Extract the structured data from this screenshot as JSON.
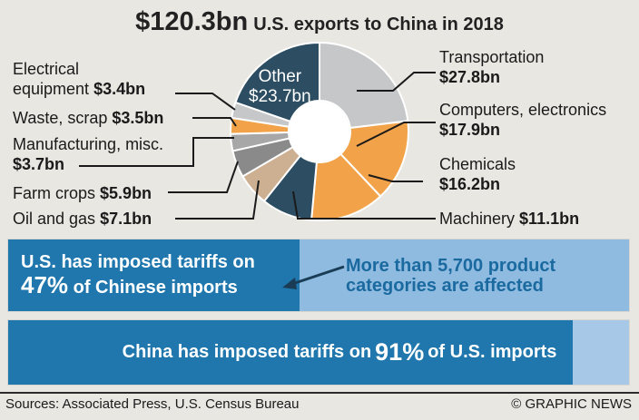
{
  "header": {
    "total": "$120.3bn",
    "subtitle": "U.S. exports to China in 2018"
  },
  "chart_data": {
    "type": "pie",
    "title": "U.S. exports to China in 2018",
    "total_label": "$120.3bn",
    "unit": "bn USD",
    "slices": [
      {
        "name": "Other",
        "value": 23.7,
        "value_label": "$23.7bn",
        "color": "#2c4d62"
      },
      {
        "name": "Transportation",
        "value": 27.8,
        "value_label": "$27.8bn",
        "color": "#c6c7c9"
      },
      {
        "name": "Computers, electronics",
        "value": 17.9,
        "value_label": "$17.9bn",
        "color": "#f2a34a"
      },
      {
        "name": "Chemicals",
        "value": 16.2,
        "value_label": "$16.2bn",
        "color": "#f2a34a"
      },
      {
        "name": "Machinery",
        "value": 11.1,
        "value_label": "$11.1bn",
        "color": "#2c4d62"
      },
      {
        "name": "Oil and gas",
        "value": 7.1,
        "value_label": "$7.1bn",
        "color": "#cdb092"
      },
      {
        "name": "Farm crops",
        "value": 5.9,
        "value_label": "$5.9bn",
        "color": "#8a8a8a"
      },
      {
        "name": "Manufacturing, misc.",
        "value": 3.7,
        "value_label": "$3.7bn",
        "color": "#a7a7a7"
      },
      {
        "name": "Waste, scrap",
        "value": 3.5,
        "value_label": "$3.5bn",
        "color": "#f2a34a"
      },
      {
        "name": "Electrical equipment",
        "value": 3.4,
        "value_label": "$3.4bn",
        "color": "#c6c7c9"
      }
    ]
  },
  "labels": {
    "other": {
      "name": "Other",
      "value": "$23.7bn"
    },
    "transportation": {
      "name": "Transportation",
      "value": "$27.8bn"
    },
    "computers": {
      "name": "Computers, electronics",
      "value": "$17.9bn"
    },
    "chemicals": {
      "name": "Chemicals",
      "value": "$16.2bn"
    },
    "machinery": {
      "name": "Machinery",
      "value": "$11.1bn"
    },
    "oil": {
      "name": "Oil and gas",
      "value": "$7.1bn"
    },
    "farm": {
      "name": "Farm crops",
      "value": "$5.9bn"
    },
    "manufacturing": {
      "name1": "Manufacturing, misc.",
      "value": "$3.7bn"
    },
    "waste": {
      "name": "Waste, scrap",
      "value": "$3.5bn"
    },
    "electrical": {
      "name1": "Electrical",
      "name2": "equipment",
      "value": "$3.4bn"
    }
  },
  "tariffs": {
    "us": {
      "prefix": "U.S. has imposed tariffs on",
      "percent": "47%",
      "percent_value": 47,
      "suffix": "of Chinese imports"
    },
    "note": {
      "line1": "More than 5,700 product",
      "line2": "categories are affected"
    },
    "china": {
      "prefix": "China has imposed tariffs on",
      "percent": "91%",
      "percent_value": 91,
      "suffix": "of U.S. imports"
    }
  },
  "footer": {
    "sources": "Sources: Associated Press, U.S. Census Bureau",
    "credit": "© GRAPHIC NEWS"
  }
}
